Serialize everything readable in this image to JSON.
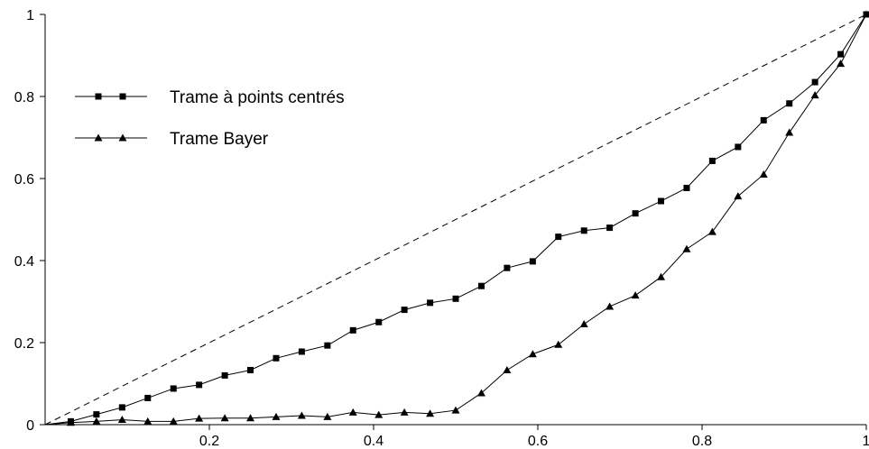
{
  "chart_data": {
    "type": "line",
    "title": "",
    "xlabel": "",
    "ylabel": "",
    "xlim": [
      0,
      1
    ],
    "ylim": [
      0,
      1
    ],
    "grid": false,
    "legend_position": "top-left",
    "x_ticks": [
      "0.2",
      "0.4",
      "0.6",
      "0.8",
      "1"
    ],
    "y_ticks": [
      "0",
      "0.2",
      "0.4",
      "0.6",
      "0.8",
      "1"
    ],
    "reference_line": {
      "x": [
        0,
        1
      ],
      "y": [
        0,
        1
      ],
      "style": "dashed",
      "color": "#000000"
    },
    "series": [
      {
        "name": "Trame à points centrés",
        "marker": "square",
        "color": "#000000",
        "x": [
          0.0313,
          0.0625,
          0.0938,
          0.125,
          0.1563,
          0.1875,
          0.2188,
          0.25,
          0.2813,
          0.3125,
          0.3438,
          0.375,
          0.4063,
          0.4375,
          0.4688,
          0.5,
          0.5313,
          0.5625,
          0.5938,
          0.625,
          0.6563,
          0.6875,
          0.7188,
          0.75,
          0.7813,
          0.8125,
          0.8438,
          0.875,
          0.9063,
          0.9375,
          0.9688,
          1.0
        ],
        "y": [
          0.008,
          0.025,
          0.042,
          0.065,
          0.088,
          0.097,
          0.12,
          0.133,
          0.162,
          0.178,
          0.193,
          0.23,
          0.25,
          0.28,
          0.297,
          0.307,
          0.338,
          0.382,
          0.398,
          0.458,
          0.473,
          0.48,
          0.515,
          0.545,
          0.577,
          0.643,
          0.677,
          0.742,
          0.783,
          0.835,
          0.903,
          1.0
        ]
      },
      {
        "name": "Trame Bayer",
        "marker": "triangle",
        "color": "#000000",
        "x": [
          0.0313,
          0.0625,
          0.0938,
          0.125,
          0.1563,
          0.1875,
          0.2188,
          0.25,
          0.2813,
          0.3125,
          0.3438,
          0.375,
          0.4063,
          0.4375,
          0.4688,
          0.5,
          0.5313,
          0.5625,
          0.5938,
          0.625,
          0.6563,
          0.6875,
          0.7188,
          0.75,
          0.7813,
          0.8125,
          0.8438,
          0.875,
          0.9063,
          0.9375,
          0.9688,
          1.0
        ],
        "y": [
          0.005,
          0.008,
          0.012,
          0.008,
          0.008,
          0.015,
          0.016,
          0.016,
          0.019,
          0.022,
          0.019,
          0.03,
          0.024,
          0.03,
          0.027,
          0.035,
          0.077,
          0.133,
          0.172,
          0.195,
          0.245,
          0.288,
          0.315,
          0.36,
          0.428,
          0.47,
          0.557,
          0.61,
          0.712,
          0.803,
          0.88,
          1.0
        ]
      }
    ]
  }
}
